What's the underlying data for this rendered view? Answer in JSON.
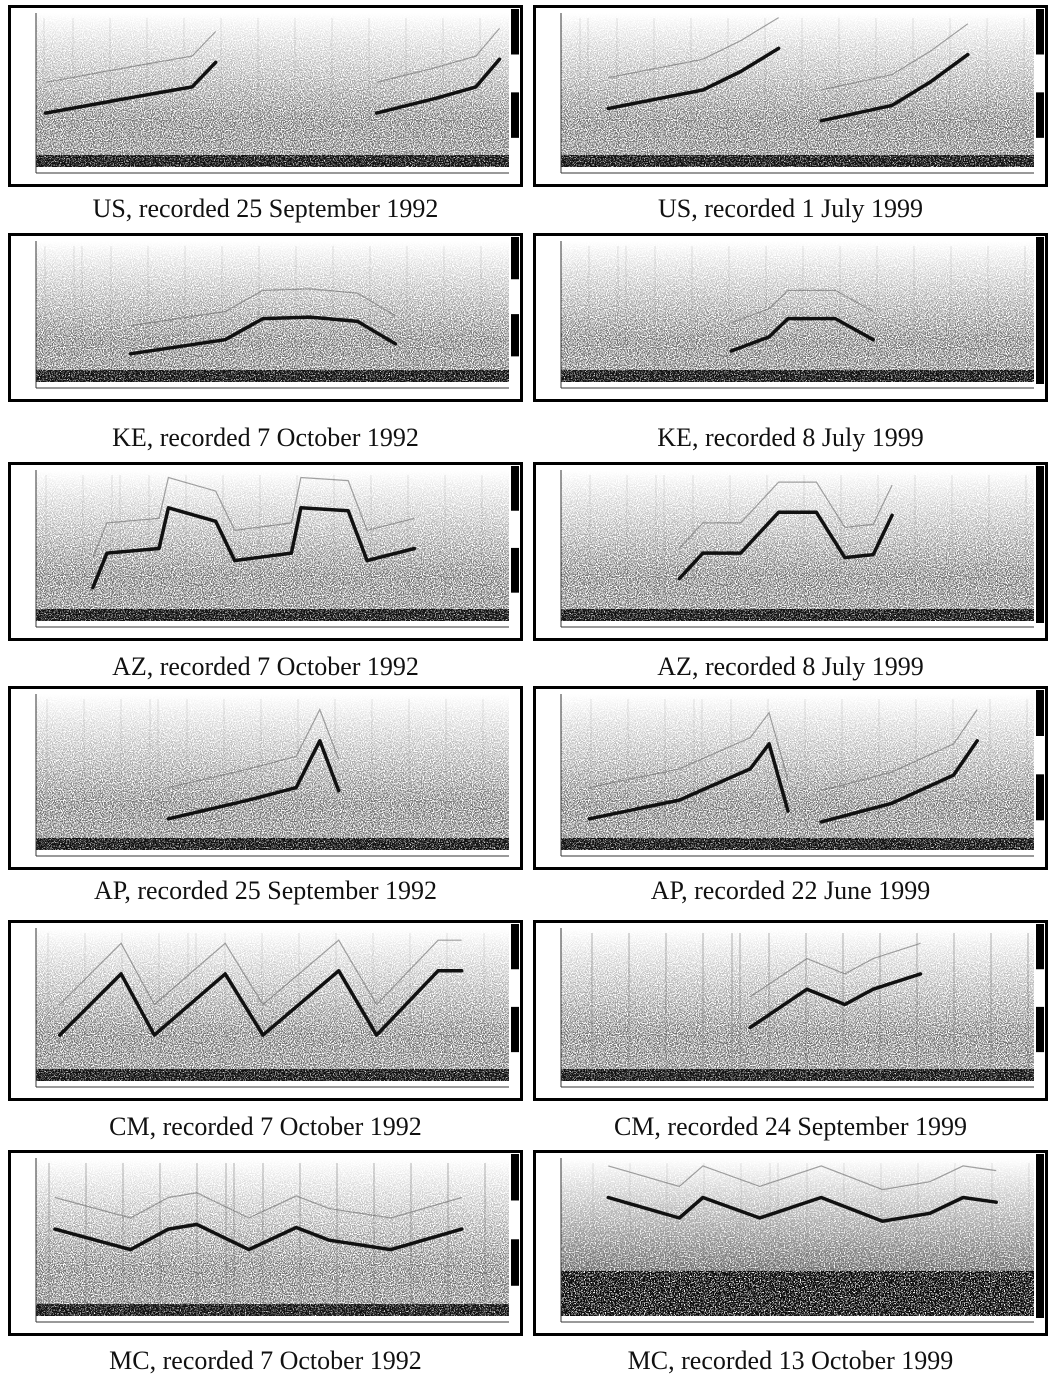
{
  "panels": [
    {
      "caption": "US, recorded 25 September 1992"
    },
    {
      "caption": "US, recorded 1 July 1999"
    },
    {
      "caption": "KE, recorded 7 October 1992"
    },
    {
      "caption": "KE, recorded 8 July 1999"
    },
    {
      "caption": "AZ, recorded 7 October 1992"
    },
    {
      "caption": "AZ, recorded 8 July 1999"
    },
    {
      "caption": "AP, recorded 25 September 1992"
    },
    {
      "caption": "AP, recorded 22 June 1999"
    },
    {
      "caption": "CM, recorded 7 October 1992"
    },
    {
      "caption": "CM, recorded 24 September 1999"
    },
    {
      "caption": "MC, recorded 7 October 1992"
    },
    {
      "caption": "MC, recorded 13 October 1999"
    }
  ]
}
